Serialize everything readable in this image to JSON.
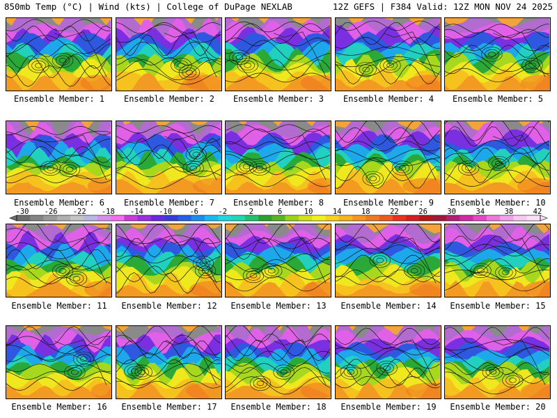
{
  "header": {
    "left": "850mb Temp (°C) | Wind (kts) | College of DuPage NEXLAB",
    "right": "12Z GEFS | F384 Valid: 12Z MON NOV 24 2025"
  },
  "members": [
    {
      "label": "Ensemble Member: 1"
    },
    {
      "label": "Ensemble Member: 2"
    },
    {
      "label": "Ensemble Member: 3"
    },
    {
      "label": "Ensemble Member: 4"
    },
    {
      "label": "Ensemble Member: 5"
    },
    {
      "label": "Ensemble Member: 6"
    },
    {
      "label": "Ensemble Member: 7"
    },
    {
      "label": "Ensemble Member: 8"
    },
    {
      "label": "Ensemble Member: 9"
    },
    {
      "label": "Ensemble Member: 10"
    },
    {
      "label": "Ensemble Member: 11"
    },
    {
      "label": "Ensemble Member: 12"
    },
    {
      "label": "Ensemble Member: 13"
    },
    {
      "label": "Ensemble Member: 14"
    },
    {
      "label": "Ensemble Member: 15"
    },
    {
      "label": "Ensemble Member: 16"
    },
    {
      "label": "Ensemble Member: 17"
    },
    {
      "label": "Ensemble Member: 18"
    },
    {
      "label": "Ensemble Member: 19"
    },
    {
      "label": "Ensemble Member: 20"
    }
  ],
  "colorbar": {
    "ticks": [
      "-30",
      "-26",
      "-22",
      "-18",
      "-14",
      "-10",
      "-6",
      "-2",
      "2",
      "6",
      "10",
      "14",
      "18",
      "22",
      "26",
      "30",
      "34",
      "38",
      "42"
    ],
    "colors": [
      "#6e6e6e",
      "#858585",
      "#9a9a9a",
      "#b0b0b0",
      "#c4c4c4",
      "#b8b8e8",
      "#d890f0",
      "#f070f0",
      "#c83cd8",
      "#9a2ee0",
      "#6a28e0",
      "#3a3cd8",
      "#2460e8",
      "#1e8cf0",
      "#1eb8f0",
      "#22d8e0",
      "#22d8b4",
      "#22c070",
      "#2ea02e",
      "#58b422",
      "#9ad21e",
      "#d2e01e",
      "#f4f01e",
      "#f8d21e",
      "#f8b41e",
      "#f49620",
      "#f07a22",
      "#ee5a22",
      "#e8341e",
      "#d61e1e",
      "#b41818",
      "#a01a3c",
      "#b41e78",
      "#d02aa8",
      "#e24ac8",
      "#ee78dc",
      "#f4a0ea",
      "#f8c8f2",
      "#fce0f8"
    ]
  }
}
